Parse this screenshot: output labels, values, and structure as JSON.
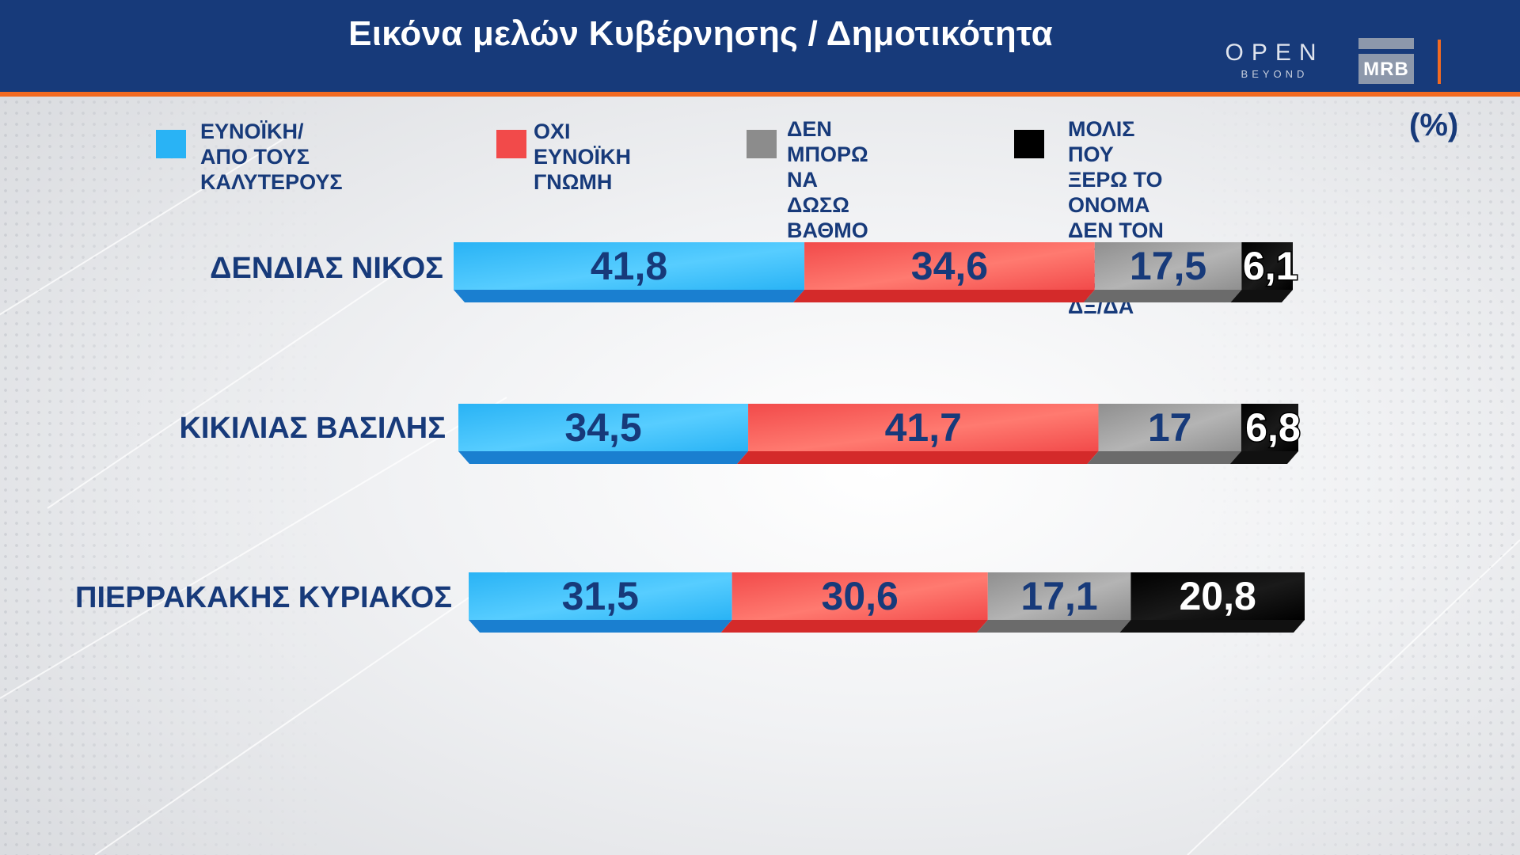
{
  "header": {
    "title": "Εικόνα μελών Κυβέρνησης / Δημοτικότητα",
    "brand_open": "OPEN",
    "brand_open_sub": "BEYOND",
    "brand_mrb": "MRB"
  },
  "legend": {
    "unit": "(%)",
    "items": [
      {
        "label": "ΕΥΝΟΪΚΗ/\nΑΠΟ ΤΟΥΣ ΚΑΛΥΤΕΡΟΥΣ",
        "color": "#29b3f5"
      },
      {
        "label": "ΟΧΙ\nΕΥΝΟΪΚΗ ΓΝΩΜΗ",
        "color": "#f24a4a"
      },
      {
        "label": "ΔΕΝ ΜΠΟΡΩ\nΝΑ ΔΩΣΩ ΒΑΘΜΟ",
        "color": "#8c8c8c"
      },
      {
        "label": "ΜΟΛΙΣ ΠΟΥ ΞΕΡΩ ΤΟ ΟΝΟΜΑ\nΔΕΝ ΤΟΝ ΕΧΩ ΑΚΟΥΣΤΑ\nΔΞ/ΔΑ",
        "color": "#000000"
      }
    ]
  },
  "chart_data": {
    "type": "bar",
    "orientation": "horizontal",
    "stacked": true,
    "title": "Εικόνα μελών Κυβέρνησης / Δημοτικότητα",
    "unit": "%",
    "categories": [
      "ΔΕΝΔΙΑΣ ΝΙΚΟΣ",
      "ΚΙΚΙΛΙΑΣ ΒΑΣΙΛΗΣ",
      "ΠΙΕΡΡΑΚΑΚΗΣ ΚΥΡΙΑΚΟΣ"
    ],
    "series": [
      {
        "name": "ΕΥΝΟΪΚΗ/ ΑΠΟ ΤΟΥΣ ΚΑΛΥΤΕΡΟΥΣ",
        "values": [
          41.8,
          34.5,
          31.5
        ],
        "labels": [
          "41,8",
          "34,5",
          "31,5"
        ],
        "color": "#29b3f5",
        "label_color": "#173a7a"
      },
      {
        "name": "ΟΧΙ ΕΥΝΟΪΚΗ ΓΝΩΜΗ",
        "values": [
          34.6,
          41.7,
          30.6
        ],
        "labels": [
          "34,6",
          "41,7",
          "30,6"
        ],
        "color": "#f24a4a",
        "label_color": "#173a7a"
      },
      {
        "name": "ΔΕΝ ΜΠΟΡΩ ΝΑ ΔΩΣΩ ΒΑΘΜΟ",
        "values": [
          17.5,
          17,
          17.1
        ],
        "labels": [
          "17,5",
          "17",
          "17,1"
        ],
        "color": "#8f8f8f",
        "label_color": "#173a7a"
      },
      {
        "name": "ΜΟΛΙΣ ΠΟΥ ΞΕΡΩ ΤΟ ΟΝΟΜΑ ΔΕΝ ΤΟΝ ΕΧΩ ΑΚΟΥΣΤΑ ΔΞ/ΔΑ",
        "values": [
          6.1,
          6.8,
          20.8
        ],
        "labels": [
          "6,1",
          "6,8",
          "20,8"
        ],
        "color": "#000000",
        "label_color": "#ffffff"
      }
    ],
    "legend_position": "top",
    "grid": false
  }
}
